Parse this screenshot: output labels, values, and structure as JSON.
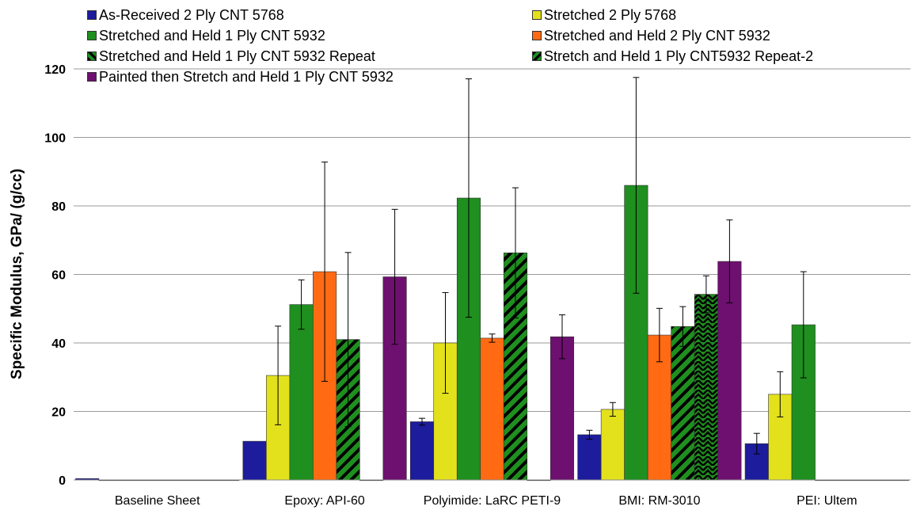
{
  "chart_data": {
    "type": "bar",
    "title": "",
    "xlabel": "",
    "ylabel": "Specific Modulus, GPa/ (g/cc)",
    "ylim": [
      0,
      120
    ],
    "yticks": [
      0,
      20,
      40,
      60,
      80,
      100,
      120
    ],
    "grid": true,
    "legend_position": "top",
    "categories": [
      "Baseline Sheet",
      "Epoxy: API-60",
      "Polyimide: LaRC PETI-9",
      "BMI: RM-3010",
      "PEI: Ultem"
    ],
    "series": [
      {
        "name": "As-Received 2 Ply CNT 5768",
        "color": "#1c1c9c",
        "pattern": "solid",
        "values": [
          0.4,
          11.3,
          17.0,
          13.2,
          10.6
        ],
        "error": [
          0,
          0,
          1.0,
          1.3,
          3.0
        ]
      },
      {
        "name": "Stretched 2 Ply 5768",
        "color": "#e3e11c",
        "pattern": "solid",
        "values": [
          0,
          30.5,
          40.0,
          20.6,
          25.0
        ],
        "error": [
          0,
          14.4,
          14.7,
          2.0,
          6.6
        ]
      },
      {
        "name": "Stretched and Held 1 Ply CNT 5932",
        "color": "#1f8f1f",
        "pattern": "solid",
        "values": [
          0,
          51.2,
          82.3,
          86.0,
          45.3
        ],
        "error": [
          0,
          7.2,
          34.8,
          31.5,
          15.5
        ]
      },
      {
        "name": "Stretched and Held 2 Ply CNT 5932",
        "color": "#ff6a13",
        "pattern": "solid",
        "values": [
          0,
          60.8,
          41.4,
          42.3,
          0
        ],
        "error": [
          0,
          32.0,
          1.2,
          7.8,
          0
        ]
      },
      {
        "name": "Stretched and Held 1 Ply CNT 5932 Repeat",
        "color": "#1f8f1f",
        "pattern": "diagonal",
        "values": [
          0,
          41.0,
          66.3,
          44.8,
          0
        ],
        "error": [
          0,
          25.4,
          19.0,
          5.8,
          0
        ]
      },
      {
        "name": "Stretch and Held 1 Ply CNT5932 Repeat-2",
        "color": "#1f8f1f",
        "pattern": "zigzag",
        "values": [
          0,
          0,
          0,
          54.2,
          0
        ],
        "error": [
          0,
          0,
          0,
          5.4,
          0
        ]
      },
      {
        "name": "Painted then Stretch and Held 1 Ply CNT 5932",
        "color": "#6e1070",
        "pattern": "solid",
        "values": [
          0,
          59.3,
          41.8,
          63.8,
          0
        ],
        "error": [
          0,
          19.7,
          6.4,
          12.1,
          0
        ]
      }
    ]
  }
}
